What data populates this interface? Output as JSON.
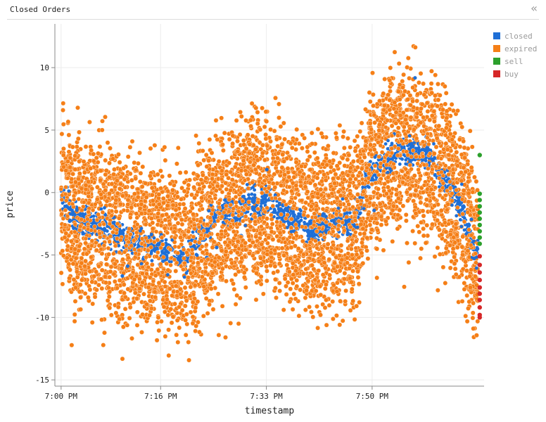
{
  "panel": {
    "title": "Closed Orders",
    "collapse_icon": "double-chevron-left-icon"
  },
  "chart_data": {
    "type": "scatter",
    "xlabel": "timestamp",
    "ylabel": "price",
    "x_unit": "minutes after 7:00 PM",
    "x_ticks": [
      {
        "value": 0,
        "label": "7:00 PM"
      },
      {
        "value": 16,
        "label": "7:16 PM"
      },
      {
        "value": 33,
        "label": "7:33 PM"
      },
      {
        "value": 50,
        "label": "7:50 PM"
      }
    ],
    "y_ticks": [
      10,
      5,
      0,
      -5,
      -10,
      -15
    ],
    "xlim": [
      -1,
      68
    ],
    "ylim": [
      -15.5,
      13.5
    ],
    "grid": true,
    "legend_position": "top-right",
    "closed_trend": [
      [
        0,
        0
      ],
      [
        2,
        -2
      ],
      [
        4,
        -2.5
      ],
      [
        6,
        -2.5
      ],
      [
        8,
        -3
      ],
      [
        10,
        -3.5
      ],
      [
        12,
        -4
      ],
      [
        14,
        -4.2
      ],
      [
        16,
        -4.5
      ],
      [
        18,
        -5
      ],
      [
        20,
        -5.5
      ],
      [
        22,
        -3.5
      ],
      [
        24,
        -2.5
      ],
      [
        26,
        -1.5
      ],
      [
        28,
        -2
      ],
      [
        30,
        -0.8
      ],
      [
        32,
        -1
      ],
      [
        33,
        -0.5
      ],
      [
        35,
        -1.5
      ],
      [
        37,
        -2
      ],
      [
        39,
        -2.5
      ],
      [
        41,
        -3
      ],
      [
        43,
        -2.5
      ],
      [
        45,
        -2.5
      ],
      [
        47,
        -2.5
      ],
      [
        48,
        -1
      ],
      [
        49,
        1
      ],
      [
        51,
        2
      ],
      [
        53,
        3
      ],
      [
        55,
        3.5
      ],
      [
        57,
        3
      ],
      [
        59,
        3
      ],
      [
        61,
        1.5
      ],
      [
        63,
        0
      ],
      [
        64,
        -1
      ],
      [
        65,
        -2
      ],
      [
        66,
        -4
      ],
      [
        67,
        -4.5
      ]
    ],
    "series": [
      {
        "name": "closed",
        "color": "#1f6fd6"
      },
      {
        "name": "expired",
        "color": "#f57f17"
      },
      {
        "name": "sell",
        "color": "#2ca02c"
      },
      {
        "name": "buy",
        "color": "#d62728"
      }
    ],
    "sell_points": [
      [
        67.3,
        3
      ],
      [
        67.3,
        -0.1
      ],
      [
        67.3,
        -0.6
      ],
      [
        67.3,
        -1.1
      ],
      [
        67.3,
        -1.6
      ],
      [
        67.3,
        -2.1
      ],
      [
        67.3,
        -2.6
      ],
      [
        67.3,
        -3.1
      ],
      [
        67.3,
        -3.6
      ],
      [
        67.3,
        -4.1
      ]
    ],
    "buy_points": [
      [
        67.3,
        -5.1
      ],
      [
        67.3,
        -5.8
      ],
      [
        67.3,
        -6.4
      ],
      [
        67.3,
        -7
      ],
      [
        67.3,
        -7.6
      ],
      [
        67.3,
        -8.1
      ],
      [
        67.3,
        -8.6
      ],
      [
        67.3,
        -9.2
      ],
      [
        67.3,
        -9.8
      ],
      [
        67.3,
        -10
      ]
    ]
  }
}
